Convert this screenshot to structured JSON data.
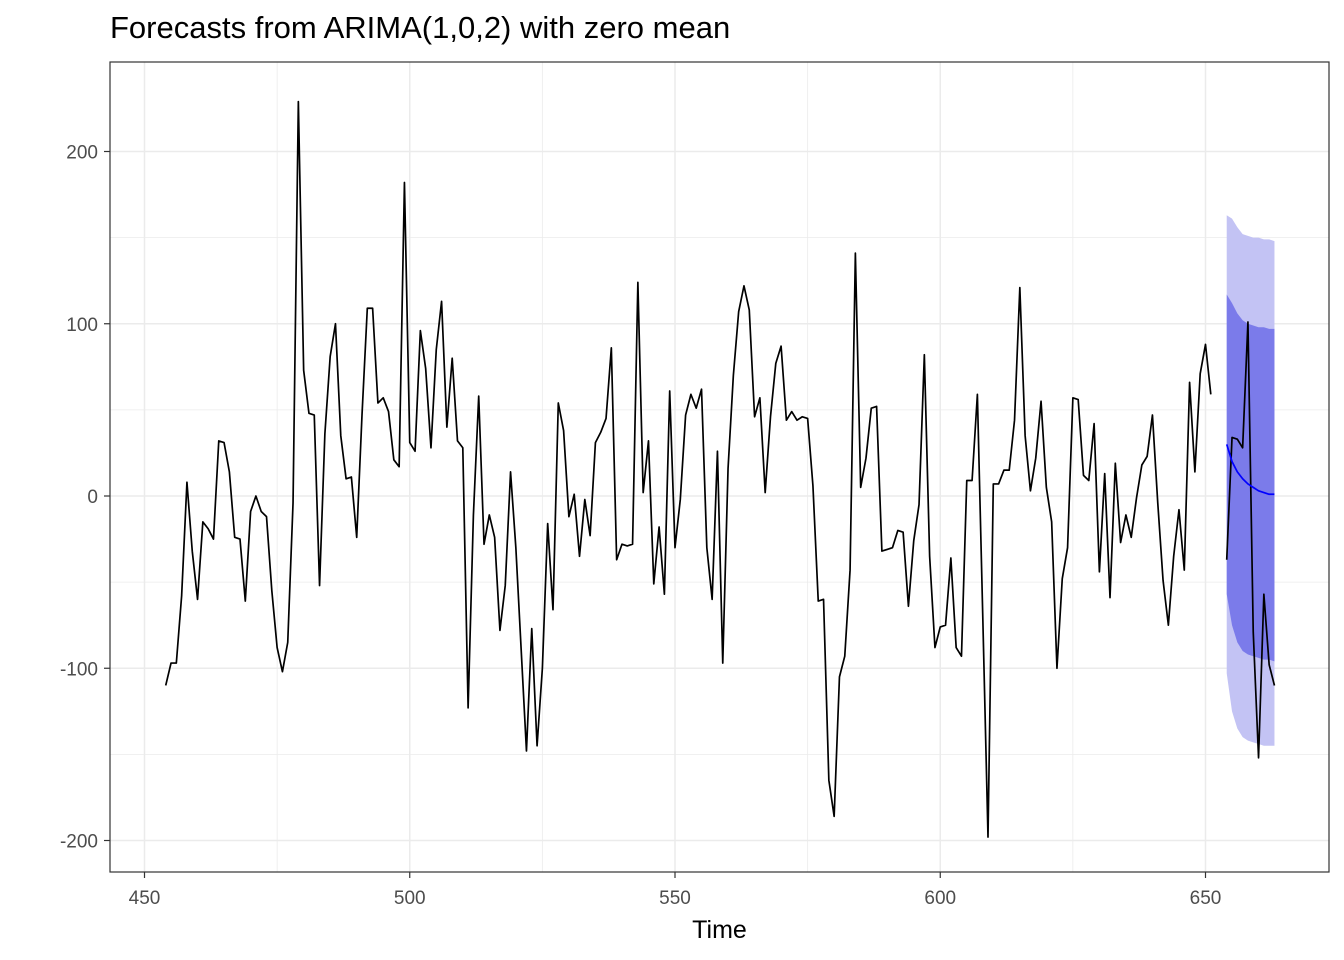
{
  "chart_data": {
    "type": "line",
    "title": "Forecasts from ARIMA(1,0,2) with zero mean",
    "xlabel": "Time",
    "ylabel": "",
    "xlim": [
      446,
      664
    ],
    "ylim": [
      -220,
      250
    ],
    "grid": true,
    "legend": "none",
    "x_major_ticks": [
      450,
      500,
      550,
      600,
      650
    ],
    "x_tick_labels": [
      "450",
      "500",
      "550",
      "600",
      "650"
    ],
    "x_minor_ticks": [
      475,
      525,
      575,
      625
    ],
    "y_major_ticks": [
      200,
      100,
      0,
      -100,
      -200
    ],
    "y_tick_labels": [
      "200",
      "100",
      "0",
      "-100",
      "-200"
    ],
    "y_minor_ticks": [
      150,
      50,
      -50,
      -150
    ],
    "colors": {
      "observed": "#000000",
      "forecast_mean": "#0000ff",
      "band_80": "#7b7bea",
      "band_95": "#c3c3f4",
      "grid": "#ebebeb",
      "panel_border": "#333333"
    },
    "series": [
      {
        "kind": "observed",
        "x_start": 454,
        "values": [
          -110,
          -97,
          -97,
          -58,
          8,
          -32,
          -60,
          -15,
          -19,
          -25,
          32,
          31,
          14,
          -24,
          -25,
          -61,
          -9,
          0,
          -9,
          -12,
          -55,
          -88,
          -102,
          -85,
          -4,
          229,
          73,
          48,
          47,
          -52,
          36,
          81,
          100,
          35,
          10,
          11,
          -24,
          47,
          109,
          109,
          54,
          57,
          49,
          21,
          17,
          182,
          31,
          26,
          96,
          74,
          28,
          85,
          113,
          40,
          80,
          32,
          28,
          -123,
          -11,
          58,
          -28,
          -11,
          -24,
          -78,
          -52,
          14,
          -30,
          -89,
          -148,
          -77,
          -145,
          -100,
          -16,
          -66,
          54,
          38,
          -12,
          1,
          -35,
          -2,
          -23,
          31,
          37,
          45,
          86,
          -37,
          -28,
          -29,
          -28,
          124,
          2,
          32,
          -51,
          -18,
          -57,
          61,
          -30,
          -2,
          47,
          59,
          51,
          62,
          -30,
          -60,
          26,
          -97,
          16,
          70,
          107,
          122,
          108,
          46,
          57,
          2,
          46,
          77,
          87,
          44,
          49,
          44,
          46,
          45,
          6,
          -61,
          -60,
          -165,
          -186,
          -105,
          -93,
          -43,
          141,
          5,
          22,
          51,
          52,
          -32,
          -31,
          -30,
          -20,
          -21,
          -64,
          -26,
          -5,
          82,
          -35,
          -88,
          -76,
          -75,
          -36,
          -88,
          -93,
          9,
          9,
          59,
          -68,
          -198,
          7,
          7,
          15,
          15,
          44,
          121,
          35,
          3,
          22,
          55,
          5,
          -15,
          -100,
          -48,
          -30,
          57,
          56,
          12,
          9,
          42,
          -44,
          13,
          -59,
          19,
          -27,
          -11,
          -24,
          -1,
          18,
          23,
          47,
          -4,
          -49,
          -75,
          -35,
          -8,
          -43,
          66,
          14,
          71,
          88,
          59
        ]
      },
      {
        "kind": "actual-in-forecast-window",
        "x_start": 654,
        "values": [
          -37,
          34,
          33,
          28,
          101,
          -79,
          -152,
          -57,
          -98,
          -110
        ]
      },
      {
        "kind": "forecast-mean",
        "x_start": 654,
        "values": [
          30,
          20,
          14,
          10,
          7,
          5,
          3,
          2,
          1,
          1
        ]
      }
    ],
    "intervals": {
      "x_start": 654,
      "lo80": [
        -57,
        -75,
        -85,
        -90,
        -92,
        -93,
        -94,
        -95,
        -95,
        -96
      ],
      "hi80": [
        117,
        112,
        106,
        102,
        100,
        99,
        98,
        98,
        97,
        97
      ],
      "lo95": [
        -103,
        -125,
        -135,
        -140,
        -142,
        -143,
        -144,
        -145,
        -145,
        -145
      ],
      "hi95": [
        163,
        161,
        156,
        152,
        151,
        150,
        150,
        149,
        149,
        148
      ]
    }
  }
}
